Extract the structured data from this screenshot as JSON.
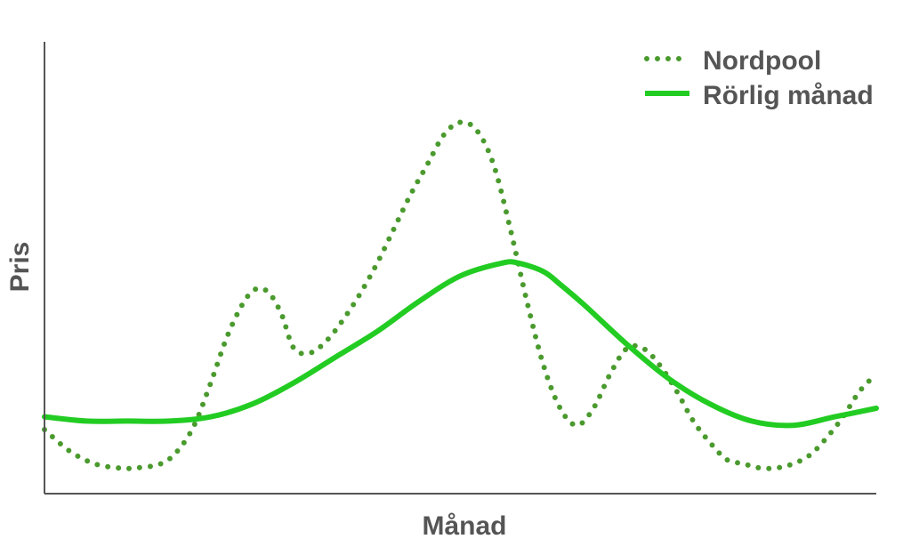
{
  "chart_data": {
    "type": "line",
    "title": "",
    "xlabel": "Månad",
    "ylabel": "Pris",
    "grid": false,
    "ticks": false,
    "legend_position": "top-right",
    "xlim": [
      0,
      100
    ],
    "ylim": [
      0,
      100
    ],
    "series": [
      {
        "name": "Nordpool",
        "style": "dotted",
        "color": "#4a9a2e",
        "x": [
          0,
          3,
          6,
          9,
          11,
          14,
          16,
          18,
          20,
          22,
          24,
          25.5,
          27,
          28.5,
          30,
          32,
          34,
          36,
          38,
          40,
          42,
          44,
          46,
          48,
          50,
          52,
          54,
          56,
          58,
          60,
          62,
          64,
          66,
          68,
          70,
          72,
          74,
          76,
          78,
          80,
          82,
          84,
          86,
          88,
          90,
          92,
          94,
          96,
          98,
          100
        ],
        "y": [
          15,
          10,
          7,
          6,
          6,
          7,
          10,
          16,
          26,
          37,
          45,
          48,
          47,
          42,
          34,
          33,
          36,
          41,
          47,
          54,
          62,
          70,
          77,
          84,
          87,
          85,
          77,
          62,
          45,
          30,
          20,
          16,
          20,
          28,
          34,
          34,
          30,
          24,
          17,
          12,
          8,
          7,
          6,
          6,
          7,
          9,
          13,
          18,
          24,
          28
        ]
      },
      {
        "name": "Rörlig månad",
        "style": "solid",
        "color": "#22cc22",
        "x": [
          0,
          5,
          10,
          15,
          20,
          25,
          30,
          35,
          40,
          45,
          50,
          55,
          57,
          60,
          62,
          65,
          70,
          75,
          80,
          85,
          90,
          95,
          100
        ],
        "y": [
          18,
          17,
          17,
          17,
          18,
          21,
          26,
          32,
          38,
          45,
          51,
          54,
          54,
          52,
          49,
          44,
          35,
          27,
          21,
          17,
          16,
          18,
          20
        ]
      }
    ]
  }
}
